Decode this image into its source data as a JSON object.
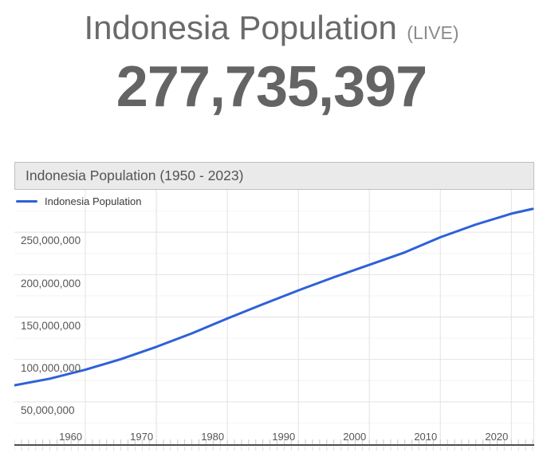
{
  "header": {
    "title": "Indonesia Population",
    "live_label": "(LIVE)",
    "live_population": "277,735,397"
  },
  "chart": {
    "header_title": "Indonesia Population (1950 - 2023)",
    "legend_label": "Indonesia Population"
  },
  "chart_data": {
    "type": "line",
    "title": "Indonesia Population (1950 - 2023)",
    "series": [
      {
        "name": "Indonesia Population",
        "color": "#2e61d8",
        "x": [
          1950,
          1955,
          1960,
          1965,
          1970,
          1975,
          1980,
          1985,
          1990,
          1995,
          2000,
          2005,
          2010,
          2015,
          2020,
          2023
        ],
        "values": [
          69500000,
          77300000,
          87800000,
          100300000,
          114800000,
          130700000,
          148200000,
          165000000,
          181400000,
          196900000,
          211500000,
          226300000,
          244000000,
          259100000,
          271900000,
          277534000
        ]
      }
    ],
    "xlabel": "",
    "ylabel": "",
    "xlim": [
      1950,
      2023
    ],
    "ylim": [
      0,
      300000000
    ],
    "ytick_values": [
      50000000,
      100000000,
      150000000,
      200000000,
      250000000
    ],
    "ytick_labels": [
      "50,000,000",
      "100,000,000",
      "150,000,000",
      "200,000,000",
      "250,000,000"
    ],
    "ytick_step": 50000000,
    "minor_ytick_step": 25000000,
    "xtick_values": [
      1960,
      1970,
      1980,
      1990,
      2000,
      2010,
      2020
    ],
    "xtick_labels": [
      "1960",
      "1970",
      "1980",
      "1990",
      "2000",
      "2010",
      "2020"
    ],
    "minor_xtick_step": 1,
    "grid": true,
    "legend_position": "top-left"
  },
  "colors": {
    "accent-line": "#2e61d8",
    "grid-major": "#e2e2e2",
    "grid-minor": "#f4f4f4",
    "axis-line": "#4d4d4d",
    "tick-above": "#c9c9c9",
    "tick-below": "#dcdcdc",
    "header-bg": "#eaeaea",
    "header-border": "#bfbfbf",
    "header-text": "#545454",
    "title-color": "#6a6a6a",
    "live-color": "#8b8b8b",
    "counter-color": "#646464",
    "axis-label": "#565656",
    "legend-text": "#3a3a3a"
  }
}
